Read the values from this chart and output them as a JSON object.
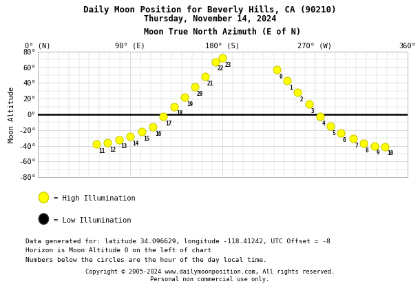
{
  "title_line1": "Daily Moon Position for Beverly Hills, CA (90210)",
  "title_line2": "Thursday, November 14, 2024",
  "xlabel": "Moon True North Azimuth (E of N)",
  "ylabel": "Moon Altitude",
  "xlim": [
    0,
    360
  ],
  "ylim": [
    -80,
    80
  ],
  "xticks": [
    0,
    90,
    180,
    270,
    360
  ],
  "xticklabels": [
    "0° (N)",
    "90° (E)",
    "180° (S)",
    "270° (W)",
    "360°"
  ],
  "yticks": [
    -80,
    -60,
    -40,
    -20,
    0,
    20,
    40,
    60,
    80
  ],
  "yticklabels": [
    "-80°",
    "-60°",
    "-40°",
    "-20°",
    "0°",
    "20°",
    "40°",
    "60°",
    "80°"
  ],
  "hours": [
    11,
    12,
    13,
    14,
    15,
    16,
    17,
    18,
    19,
    20,
    21,
    22,
    23,
    0,
    1,
    2,
    3,
    4,
    5,
    6,
    7,
    8,
    9,
    10
  ],
  "azimuths": [
    57,
    68,
    79,
    90,
    101,
    112,
    122,
    133,
    143,
    153,
    163,
    173,
    180,
    233,
    243,
    253,
    264,
    275,
    285,
    295,
    307,
    317,
    328,
    338
  ],
  "altitudes": [
    -38,
    -36,
    -32,
    -28,
    -22,
    -16,
    -3,
    10,
    22,
    35,
    48,
    67,
    72,
    57,
    43,
    28,
    13,
    -3,
    -15,
    -24,
    -31,
    -37,
    -40,
    -41
  ],
  "moon_color_face": "#FFFF00",
  "moon_color_edge": "#CCCC00",
  "horizon_color": "#000000",
  "grid_color": "#CCCCCC",
  "bg_color": "#FFFFFF",
  "plot_bg_color": "#FFFFFF",
  "legend_high_color": "#FFFF00",
  "legend_low_color": "#000000",
  "footer_line1": "Data generated for: latitude 34.096629, longitude -118.41242, UTC Offset = -8",
  "footer_line2": "Horizon is Moon Altitude 0 on the left of chart",
  "footer_line3": "Numbers below the circles are the hour of the day local time.",
  "copyright": "Copyright © 2005-2024 www.dailymoonposition.com, All rights reserved.",
  "copyright2": "Personal non commercial use only.",
  "marker_size": 8
}
